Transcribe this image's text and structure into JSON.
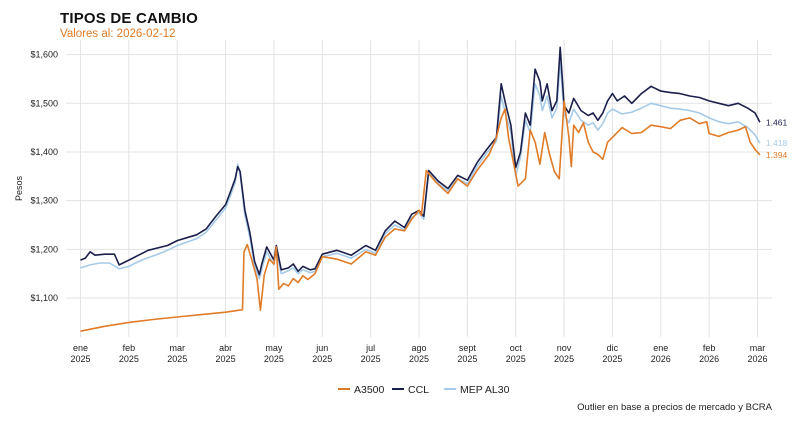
{
  "chart_data": {
    "type": "line",
    "title": "TIPOS DE CAMBIO",
    "subtitle": "Valores al: 2026-02-12",
    "ylabel": "Pesos",
    "xlabel": "",
    "caption": "Outlier en base a precios de mercado y BCRA",
    "ylim": [
      1020,
      1630
    ],
    "yticks": [
      {
        "value": 1100,
        "label": "$1,100"
      },
      {
        "value": 1200,
        "label": "$1,200"
      },
      {
        "value": 1300,
        "label": "$1,300"
      },
      {
        "value": 1400,
        "label": "$1,400"
      },
      {
        "value": 1500,
        "label": "$1,500"
      },
      {
        "value": 1600,
        "label": "$1,600"
      }
    ],
    "xlim": [
      -0.3,
      14.3
    ],
    "xticks": [
      {
        "value": 0,
        "month": "ene",
        "year": "2025"
      },
      {
        "value": 1,
        "month": "feb",
        "year": "2025"
      },
      {
        "value": 2,
        "month": "mar",
        "year": "2025"
      },
      {
        "value": 3,
        "month": "abr",
        "year": "2025"
      },
      {
        "value": 4,
        "month": "may",
        "year": "2025"
      },
      {
        "value": 5,
        "month": "jun",
        "year": "2025"
      },
      {
        "value": 6,
        "month": "jul",
        "year": "2025"
      },
      {
        "value": 7,
        "month": "ago",
        "year": "2025"
      },
      {
        "value": 8,
        "month": "sept",
        "year": "2025"
      },
      {
        "value": 9,
        "month": "oct",
        "year": "2025"
      },
      {
        "value": 10,
        "month": "nov",
        "year": "2025"
      },
      {
        "value": 11,
        "month": "dic",
        "year": "2025"
      },
      {
        "value": 12,
        "month": "ene",
        "year": "2026"
      },
      {
        "value": 13,
        "month": "feb",
        "year": "2026"
      },
      {
        "value": 14,
        "month": "mar",
        "year": "2026"
      }
    ],
    "grid": true,
    "legend_position": "bottom",
    "series": [
      {
        "name": "A3500",
        "color": "#e07b27",
        "end_label": "1.394",
        "points": [
          [
            0,
            1032
          ],
          [
            0.5,
            1042
          ],
          [
            1,
            1050
          ],
          [
            1.5,
            1056
          ],
          [
            2,
            1061
          ],
          [
            2.5,
            1066
          ],
          [
            3,
            1071
          ],
          [
            3.35,
            1076
          ],
          [
            3.38,
            1195
          ],
          [
            3.45,
            1210
          ],
          [
            3.55,
            1175
          ],
          [
            3.65,
            1140
          ],
          [
            3.72,
            1075
          ],
          [
            3.8,
            1148
          ],
          [
            3.9,
            1180
          ],
          [
            4.0,
            1170
          ],
          [
            4.05,
            1205
          ],
          [
            4.1,
            1118
          ],
          [
            4.2,
            1130
          ],
          [
            4.3,
            1125
          ],
          [
            4.4,
            1140
          ],
          [
            4.5,
            1132
          ],
          [
            4.6,
            1146
          ],
          [
            4.7,
            1138
          ],
          [
            4.85,
            1150
          ],
          [
            5,
            1185
          ],
          [
            5.3,
            1180
          ],
          [
            5.6,
            1170
          ],
          [
            5.9,
            1195
          ],
          [
            6.1,
            1188
          ],
          [
            6.3,
            1225
          ],
          [
            6.5,
            1242
          ],
          [
            6.7,
            1238
          ],
          [
            6.85,
            1262
          ],
          [
            7.0,
            1280
          ],
          [
            7.05,
            1270
          ],
          [
            7.15,
            1362
          ],
          [
            7.35,
            1338
          ],
          [
            7.6,
            1315
          ],
          [
            7.8,
            1345
          ],
          [
            8.0,
            1330
          ],
          [
            8.2,
            1362
          ],
          [
            8.45,
            1395
          ],
          [
            8.6,
            1430
          ],
          [
            8.7,
            1470
          ],
          [
            8.78,
            1488
          ],
          [
            8.85,
            1430
          ],
          [
            8.95,
            1380
          ],
          [
            9.05,
            1330
          ],
          [
            9.2,
            1345
          ],
          [
            9.3,
            1445
          ],
          [
            9.4,
            1420
          ],
          [
            9.5,
            1375
          ],
          [
            9.6,
            1440
          ],
          [
            9.7,
            1395
          ],
          [
            9.8,
            1360
          ],
          [
            9.9,
            1345
          ],
          [
            10.0,
            1505
          ],
          [
            10.1,
            1430
          ],
          [
            10.15,
            1370
          ],
          [
            10.2,
            1455
          ],
          [
            10.3,
            1440
          ],
          [
            10.4,
            1460
          ],
          [
            10.5,
            1420
          ],
          [
            10.6,
            1400
          ],
          [
            10.7,
            1395
          ],
          [
            10.8,
            1385
          ],
          [
            10.9,
            1420
          ],
          [
            11.0,
            1430
          ],
          [
            11.2,
            1450
          ],
          [
            11.4,
            1438
          ],
          [
            11.6,
            1440
          ],
          [
            11.8,
            1455
          ],
          [
            12.0,
            1452
          ],
          [
            12.2,
            1448
          ],
          [
            12.4,
            1465
          ],
          [
            12.6,
            1470
          ],
          [
            12.8,
            1458
          ],
          [
            12.95,
            1462
          ],
          [
            13.0,
            1438
          ],
          [
            13.2,
            1432
          ],
          [
            13.4,
            1440
          ],
          [
            13.6,
            1445
          ],
          [
            13.75,
            1452
          ],
          [
            13.85,
            1420
          ],
          [
            13.95,
            1405
          ],
          [
            14.05,
            1394
          ]
        ]
      },
      {
        "name": "CCL",
        "color": "#1b1f4b",
        "end_label": "1.461",
        "points": [
          [
            0,
            1178
          ],
          [
            0.1,
            1182
          ],
          [
            0.2,
            1195
          ],
          [
            0.3,
            1188
          ],
          [
            0.5,
            1190
          ],
          [
            0.7,
            1190
          ],
          [
            0.8,
            1168
          ],
          [
            1.0,
            1178
          ],
          [
            1.2,
            1188
          ],
          [
            1.4,
            1198
          ],
          [
            1.6,
            1203
          ],
          [
            1.8,
            1208
          ],
          [
            2.0,
            1218
          ],
          [
            2.2,
            1224
          ],
          [
            2.4,
            1230
          ],
          [
            2.6,
            1242
          ],
          [
            2.8,
            1268
          ],
          [
            3.0,
            1292
          ],
          [
            3.1,
            1318
          ],
          [
            3.2,
            1345
          ],
          [
            3.25,
            1370
          ],
          [
            3.3,
            1360
          ],
          [
            3.4,
            1280
          ],
          [
            3.5,
            1235
          ],
          [
            3.6,
            1175
          ],
          [
            3.7,
            1148
          ],
          [
            3.75,
            1170
          ],
          [
            3.85,
            1205
          ],
          [
            4.0,
            1178
          ],
          [
            4.05,
            1208
          ],
          [
            4.15,
            1158
          ],
          [
            4.3,
            1162
          ],
          [
            4.4,
            1170
          ],
          [
            4.5,
            1155
          ],
          [
            4.6,
            1165
          ],
          [
            4.75,
            1158
          ],
          [
            4.85,
            1160
          ],
          [
            5.0,
            1190
          ],
          [
            5.3,
            1198
          ],
          [
            5.6,
            1188
          ],
          [
            5.9,
            1208
          ],
          [
            6.1,
            1198
          ],
          [
            6.3,
            1238
          ],
          [
            6.5,
            1258
          ],
          [
            6.7,
            1245
          ],
          [
            6.85,
            1272
          ],
          [
            7.0,
            1280
          ],
          [
            7.1,
            1268
          ],
          [
            7.2,
            1362
          ],
          [
            7.4,
            1340
          ],
          [
            7.6,
            1325
          ],
          [
            7.8,
            1352
          ],
          [
            8.0,
            1342
          ],
          [
            8.2,
            1378
          ],
          [
            8.4,
            1405
          ],
          [
            8.6,
            1430
          ],
          [
            8.7,
            1540
          ],
          [
            8.8,
            1495
          ],
          [
            8.9,
            1455
          ],
          [
            9.0,
            1368
          ],
          [
            9.1,
            1400
          ],
          [
            9.2,
            1480
          ],
          [
            9.3,
            1455
          ],
          [
            9.4,
            1570
          ],
          [
            9.5,
            1545
          ],
          [
            9.55,
            1505
          ],
          [
            9.65,
            1540
          ],
          [
            9.75,
            1485
          ],
          [
            9.85,
            1505
          ],
          [
            9.92,
            1615
          ],
          [
            10.0,
            1495
          ],
          [
            10.1,
            1480
          ],
          [
            10.2,
            1510
          ],
          [
            10.35,
            1485
          ],
          [
            10.5,
            1475
          ],
          [
            10.6,
            1480
          ],
          [
            10.7,
            1465
          ],
          [
            10.8,
            1480
          ],
          [
            10.9,
            1505
          ],
          [
            11.0,
            1520
          ],
          [
            11.1,
            1505
          ],
          [
            11.25,
            1515
          ],
          [
            11.4,
            1500
          ],
          [
            11.6,
            1520
          ],
          [
            11.8,
            1535
          ],
          [
            12.0,
            1525
          ],
          [
            12.2,
            1522
          ],
          [
            12.4,
            1520
          ],
          [
            12.6,
            1515
          ],
          [
            12.8,
            1512
          ],
          [
            13.0,
            1505
          ],
          [
            13.2,
            1500
          ],
          [
            13.4,
            1495
          ],
          [
            13.6,
            1500
          ],
          [
            13.8,
            1490
          ],
          [
            13.95,
            1480
          ],
          [
            14.05,
            1461
          ]
        ]
      },
      {
        "name": "MEP AL30",
        "color": "#a6cbe8",
        "end_label": "1.418",
        "points": [
          [
            0,
            1162
          ],
          [
            0.2,
            1168
          ],
          [
            0.4,
            1172
          ],
          [
            0.6,
            1172
          ],
          [
            0.8,
            1160
          ],
          [
            1.0,
            1165
          ],
          [
            1.2,
            1175
          ],
          [
            1.4,
            1183
          ],
          [
            1.6,
            1190
          ],
          [
            1.8,
            1198
          ],
          [
            2.0,
            1208
          ],
          [
            2.2,
            1215
          ],
          [
            2.4,
            1222
          ],
          [
            2.6,
            1235
          ],
          [
            2.8,
            1260
          ],
          [
            3.0,
            1285
          ],
          [
            3.1,
            1310
          ],
          [
            3.2,
            1338
          ],
          [
            3.25,
            1375
          ],
          [
            3.3,
            1355
          ],
          [
            3.4,
            1270
          ],
          [
            3.5,
            1225
          ],
          [
            3.6,
            1165
          ],
          [
            3.7,
            1140
          ],
          [
            3.75,
            1160
          ],
          [
            3.85,
            1195
          ],
          [
            4.0,
            1168
          ],
          [
            4.05,
            1200
          ],
          [
            4.15,
            1150
          ],
          [
            4.3,
            1156
          ],
          [
            4.4,
            1162
          ],
          [
            4.5,
            1150
          ],
          [
            4.6,
            1158
          ],
          [
            4.75,
            1152
          ],
          [
            4.85,
            1155
          ],
          [
            5.0,
            1185
          ],
          [
            5.3,
            1192
          ],
          [
            5.6,
            1182
          ],
          [
            5.9,
            1200
          ],
          [
            6.1,
            1192
          ],
          [
            6.3,
            1232
          ],
          [
            6.5,
            1250
          ],
          [
            6.7,
            1240
          ],
          [
            6.85,
            1265
          ],
          [
            7.0,
            1275
          ],
          [
            7.1,
            1262
          ],
          [
            7.2,
            1358
          ],
          [
            7.4,
            1335
          ],
          [
            7.6,
            1320
          ],
          [
            7.8,
            1345
          ],
          [
            8.0,
            1335
          ],
          [
            8.2,
            1370
          ],
          [
            8.4,
            1398
          ],
          [
            8.6,
            1422
          ],
          [
            8.7,
            1515
          ],
          [
            8.8,
            1475
          ],
          [
            8.9,
            1440
          ],
          [
            9.0,
            1350
          ],
          [
            9.1,
            1390
          ],
          [
            9.2,
            1465
          ],
          [
            9.3,
            1440
          ],
          [
            9.4,
            1540
          ],
          [
            9.5,
            1515
          ],
          [
            9.55,
            1485
          ],
          [
            9.65,
            1515
          ],
          [
            9.75,
            1470
          ],
          [
            9.85,
            1490
          ],
          [
            9.92,
            1585
          ],
          [
            10.0,
            1478
          ],
          [
            10.1,
            1460
          ],
          [
            10.2,
            1488
          ],
          [
            10.35,
            1465
          ],
          [
            10.5,
            1455
          ],
          [
            10.6,
            1460
          ],
          [
            10.7,
            1445
          ],
          [
            10.8,
            1458
          ],
          [
            10.9,
            1480
          ],
          [
            11.0,
            1488
          ],
          [
            11.2,
            1478
          ],
          [
            11.4,
            1482
          ],
          [
            11.6,
            1490
          ],
          [
            11.8,
            1500
          ],
          [
            12.0,
            1495
          ],
          [
            12.2,
            1490
          ],
          [
            12.4,
            1488
          ],
          [
            12.6,
            1485
          ],
          [
            12.8,
            1480
          ],
          [
            13.0,
            1470
          ],
          [
            13.2,
            1462
          ],
          [
            13.4,
            1458
          ],
          [
            13.6,
            1462
          ],
          [
            13.8,
            1450
          ],
          [
            13.95,
            1435
          ],
          [
            14.05,
            1418
          ]
        ]
      }
    ]
  }
}
